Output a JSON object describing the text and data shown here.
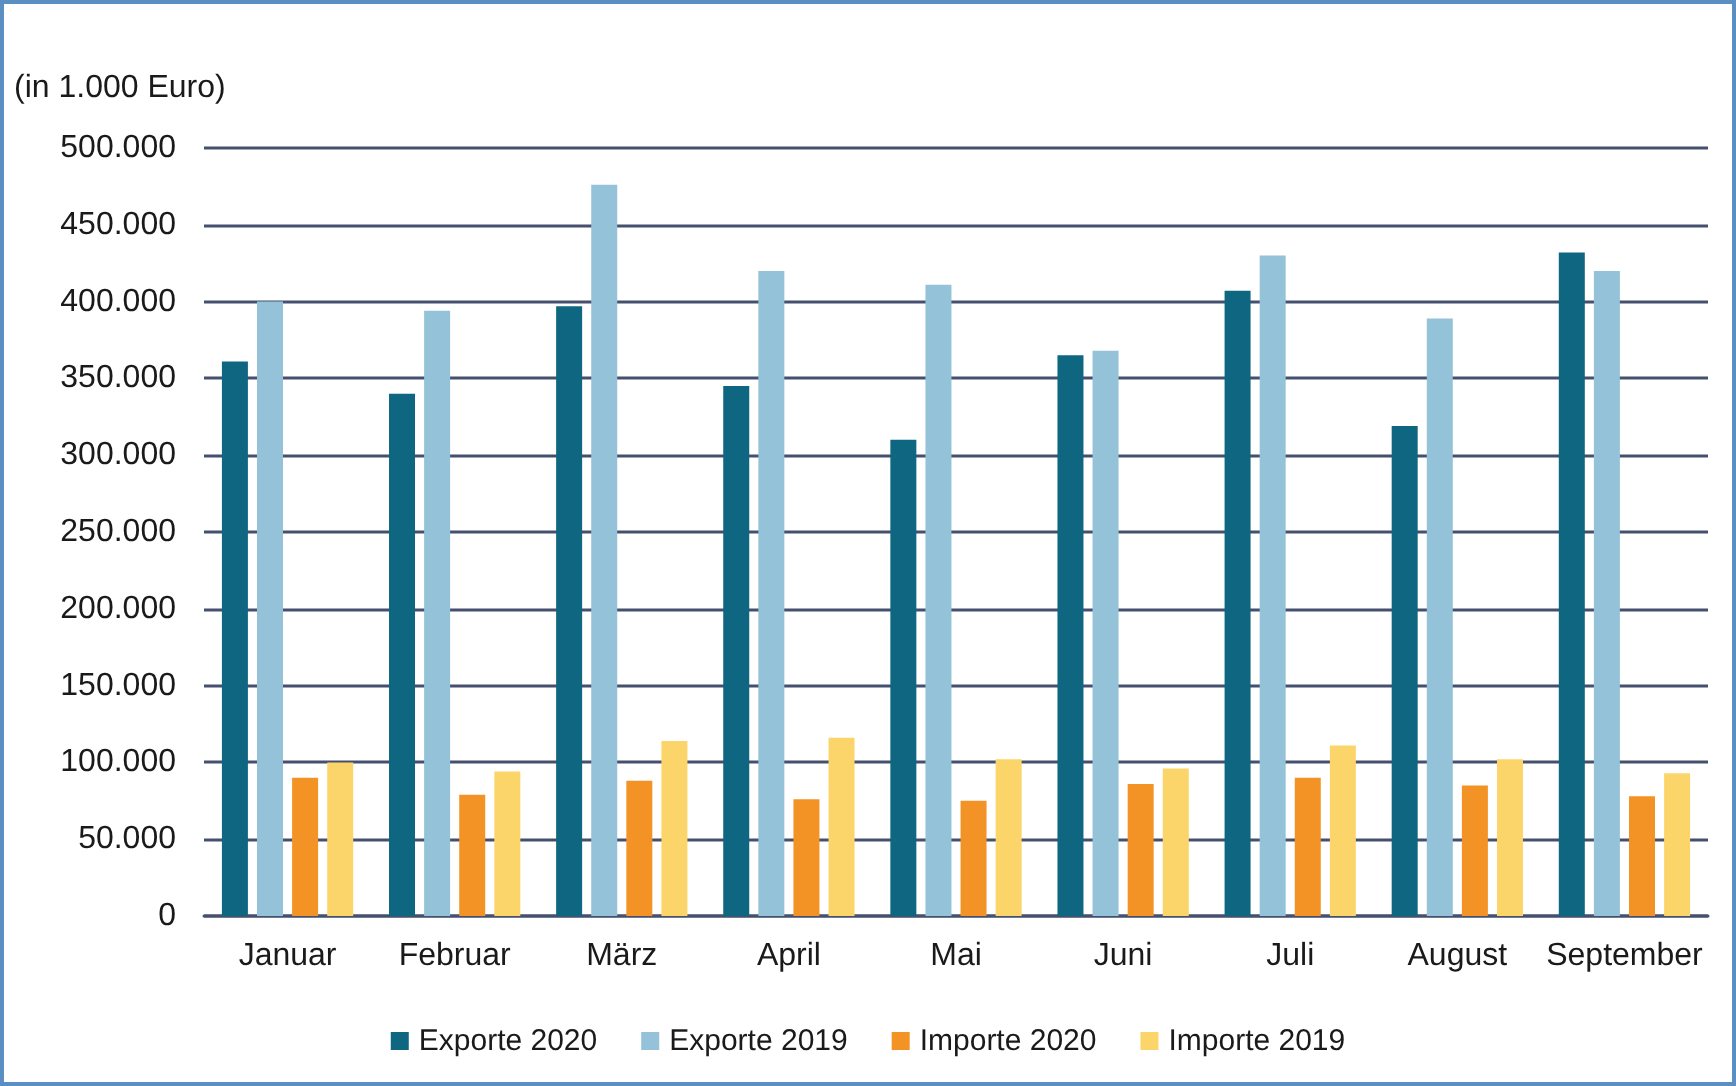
{
  "chart_data": {
    "type": "bar",
    "ylabel": "(in 1.000 Euro)",
    "categories": [
      "Januar",
      "Februar",
      "März",
      "April",
      "Mai",
      "Juni",
      "Juli",
      "August",
      "September"
    ],
    "series": [
      {
        "name": "Exporte 2020",
        "color": "#0e6680",
        "values": [
          361000,
          340000,
          397000,
          345000,
          310000,
          365000,
          407000,
          319000,
          432000
        ]
      },
      {
        "name": "Exporte 2019",
        "color": "#94c2d8",
        "values": [
          400000,
          394000,
          476000,
          420000,
          411000,
          368000,
          430000,
          389000,
          420000
        ]
      },
      {
        "name": "Importe 2020",
        "color": "#f39325",
        "values": [
          90000,
          79000,
          88000,
          76000,
          75000,
          86000,
          90000,
          85000,
          78000
        ]
      },
      {
        "name": "Importe 2019",
        "color": "#fcd56a",
        "values": [
          100000,
          94000,
          114000,
          116000,
          102000,
          96000,
          111000,
          102000,
          93000
        ]
      }
    ],
    "ylim": [
      0,
      500000
    ],
    "yticks": [
      0,
      {
        "value": 50000,
        "label": "50.000"
      },
      {
        "value": 100000,
        "label": "100.000"
      },
      {
        "value": 150000,
        "label": "150.000"
      },
      {
        "value": 200000,
        "label": "200.000"
      },
      {
        "value": 250000,
        "label": "250.000"
      },
      {
        "value": 300000,
        "label": "300.000"
      },
      {
        "value": 350000,
        "label": "350.000"
      },
      {
        "value": 400000,
        "label": "400.000"
      },
      {
        "value": 450000,
        "label": "450.000"
      },
      {
        "value": 500000,
        "label": "500.000"
      }
    ],
    "grid": "y",
    "legend": "bottom"
  }
}
